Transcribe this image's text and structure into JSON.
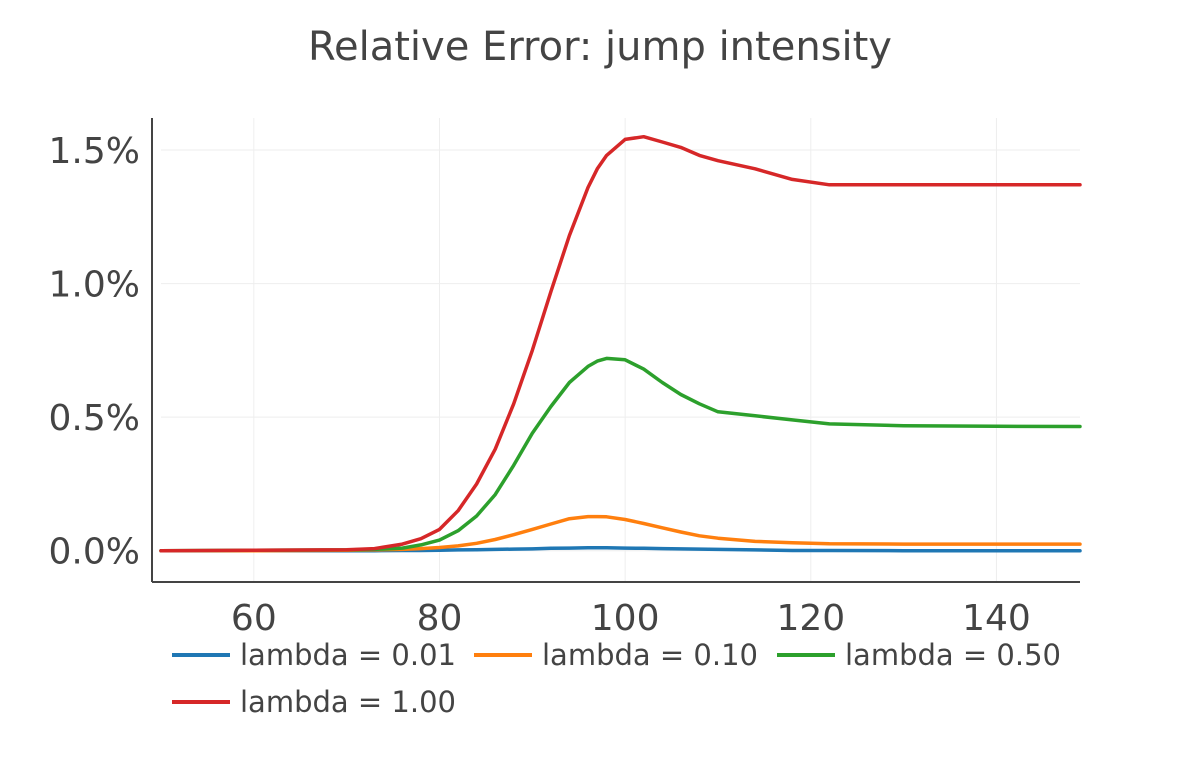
{
  "chart_data": {
    "type": "line",
    "title": "Relative Error: jump intensity",
    "xlabel": "",
    "ylabel": "",
    "xlim": [
      50,
      149
    ],
    "ylim": [
      -0.00117,
      0.0162
    ],
    "x_ticks": [
      60,
      80,
      100,
      120,
      140
    ],
    "x_tick_labels": [
      "60",
      "80",
      "100",
      "120",
      "140"
    ],
    "y_ticks": [
      0,
      0.005,
      0.01,
      0.015
    ],
    "y_tick_labels": [
      "0.0%",
      "0.5%",
      "1.0%",
      "1.5%"
    ],
    "grid": true,
    "legend_position": "bottom",
    "x": [
      50,
      60,
      70,
      73,
      76,
      78,
      80,
      82,
      84,
      86,
      88,
      90,
      92,
      94,
      96,
      97,
      98,
      100,
      102,
      104,
      106,
      108,
      110,
      114,
      118,
      122,
      130,
      140,
      149
    ],
    "series": [
      {
        "name": "lambda = 0.01",
        "color": "#1f77b4",
        "values": [
          0,
          0,
          0,
          0,
          1e-05,
          1e-05,
          2e-05,
          3e-05,
          4e-05,
          5e-05,
          6e-05,
          7e-05,
          9e-05,
          0.0001,
          0.00011,
          0.00011,
          0.00011,
          0.0001,
          9e-05,
          8e-05,
          7e-05,
          6e-05,
          5e-05,
          3e-05,
          1e-05,
          1e-05,
          0,
          0,
          0
        ]
      },
      {
        "name": "lambda = 0.10",
        "color": "#ff7f0e",
        "values": [
          0,
          0,
          2e-05,
          3e-05,
          5e-05,
          8e-05,
          0.00012,
          0.00018,
          0.00028,
          0.00042,
          0.0006,
          0.0008,
          0.001,
          0.0012,
          0.00128,
          0.00128,
          0.00127,
          0.00117,
          0.00102,
          0.00086,
          0.0007,
          0.00056,
          0.00047,
          0.00035,
          0.0003,
          0.00026,
          0.00025,
          0.00025,
          0.00025
        ]
      },
      {
        "name": "lambda = 0.50",
        "color": "#2ca02c",
        "values": [
          0,
          2e-05,
          3e-05,
          5e-05,
          0.0001,
          0.00022,
          0.0004,
          0.00075,
          0.0013,
          0.0021,
          0.0032,
          0.0044,
          0.0054,
          0.0063,
          0.0069,
          0.0071,
          0.0072,
          0.00715,
          0.0068,
          0.0063,
          0.00585,
          0.0055,
          0.0052,
          0.00505,
          0.0049,
          0.00475,
          0.00468,
          0.00466,
          0.00465
        ]
      },
      {
        "name": "lambda = 1.00",
        "color": "#d62728",
        "values": [
          0,
          2e-05,
          4e-05,
          8e-05,
          0.00025,
          0.00045,
          0.0008,
          0.0015,
          0.0025,
          0.0038,
          0.0055,
          0.0075,
          0.0097,
          0.0118,
          0.0136,
          0.0143,
          0.0148,
          0.0154,
          0.0155,
          0.0153,
          0.0151,
          0.0148,
          0.0146,
          0.0143,
          0.0139,
          0.0137,
          0.0137,
          0.0137,
          0.0137
        ]
      }
    ]
  }
}
